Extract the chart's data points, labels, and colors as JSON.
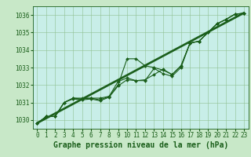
{
  "background_color": "#c8e8c8",
  "plot_bg_color": "#c8eee8",
  "grid_color": "#90c090",
  "line_color": "#1a5e1a",
  "title": "Graphe pression niveau de la mer (hPa)",
  "title_fontsize": 7,
  "tick_fontsize": 5.5,
  "xlim": [
    -0.5,
    23.5
  ],
  "ylim": [
    1029.5,
    1036.5
  ],
  "yticks": [
    1030,
    1031,
    1032,
    1033,
    1034,
    1035,
    1036
  ],
  "xticks": [
    0,
    1,
    2,
    3,
    4,
    5,
    6,
    7,
    8,
    9,
    10,
    11,
    12,
    13,
    14,
    15,
    16,
    17,
    18,
    19,
    20,
    21,
    22,
    23
  ],
  "straight_lines": [
    [
      [
        0,
        23
      ],
      [
        1029.8,
        1036.1
      ]
    ],
    [
      [
        0,
        23
      ],
      [
        1029.8,
        1036.1
      ]
    ]
  ],
  "data_series": [
    [
      0,
      1029.8
    ],
    [
      1,
      1030.2
    ],
    [
      2,
      1030.2
    ],
    [
      3,
      1031.0
    ],
    [
      4,
      1031.25
    ],
    [
      5,
      1031.2
    ],
    [
      6,
      1031.25
    ],
    [
      7,
      1031.15
    ],
    [
      8,
      1031.35
    ],
    [
      9,
      1032.0
    ],
    [
      10,
      1033.5
    ],
    [
      11,
      1033.5
    ],
    [
      12,
      1033.1
    ],
    [
      13,
      1033.0
    ],
    [
      14,
      1032.85
    ],
    [
      15,
      1032.6
    ],
    [
      16,
      1033.1
    ],
    [
      17,
      1034.4
    ],
    [
      18,
      1034.5
    ],
    [
      19,
      1035.0
    ],
    [
      20,
      1035.5
    ],
    [
      21,
      1035.75
    ],
    [
      22,
      1036.05
    ],
    [
      23,
      1036.1
    ]
  ],
  "series2": [
    [
      0,
      1029.8
    ],
    [
      1,
      1030.2
    ],
    [
      2,
      1030.2
    ],
    [
      3,
      1031.0
    ],
    [
      4,
      1031.25
    ],
    [
      5,
      1031.25
    ],
    [
      6,
      1031.25
    ],
    [
      7,
      1031.25
    ],
    [
      8,
      1031.35
    ],
    [
      9,
      1032.2
    ],
    [
      10,
      1032.4
    ],
    [
      11,
      1032.25
    ],
    [
      12,
      1032.3
    ],
    [
      13,
      1032.6
    ],
    [
      14,
      1032.9
    ],
    [
      15,
      1032.6
    ],
    [
      16,
      1033.1
    ],
    [
      17,
      1034.4
    ],
    [
      18,
      1034.5
    ],
    [
      19,
      1035.0
    ],
    [
      20,
      1035.5
    ],
    [
      21,
      1035.75
    ],
    [
      22,
      1036.05
    ],
    [
      23,
      1036.1
    ]
  ],
  "series3": [
    [
      0,
      1029.8
    ],
    [
      1,
      1030.2
    ],
    [
      2,
      1030.2
    ],
    [
      3,
      1031.0
    ],
    [
      4,
      1031.2
    ],
    [
      5,
      1031.15
    ],
    [
      6,
      1031.2
    ],
    [
      7,
      1031.1
    ],
    [
      8,
      1031.3
    ],
    [
      9,
      1031.95
    ],
    [
      10,
      1032.3
    ],
    [
      11,
      1032.25
    ],
    [
      12,
      1032.25
    ],
    [
      13,
      1032.95
    ],
    [
      14,
      1032.65
    ],
    [
      15,
      1032.5
    ],
    [
      16,
      1033.0
    ],
    [
      17,
      1034.4
    ],
    [
      18,
      1034.5
    ],
    [
      19,
      1035.0
    ],
    [
      20,
      1035.5
    ],
    [
      21,
      1035.75
    ],
    [
      22,
      1036.05
    ],
    [
      23,
      1036.1
    ]
  ],
  "marker": "D",
  "marker_size": 2.0,
  "line_width": 0.8,
  "straight_lw": 1.2
}
